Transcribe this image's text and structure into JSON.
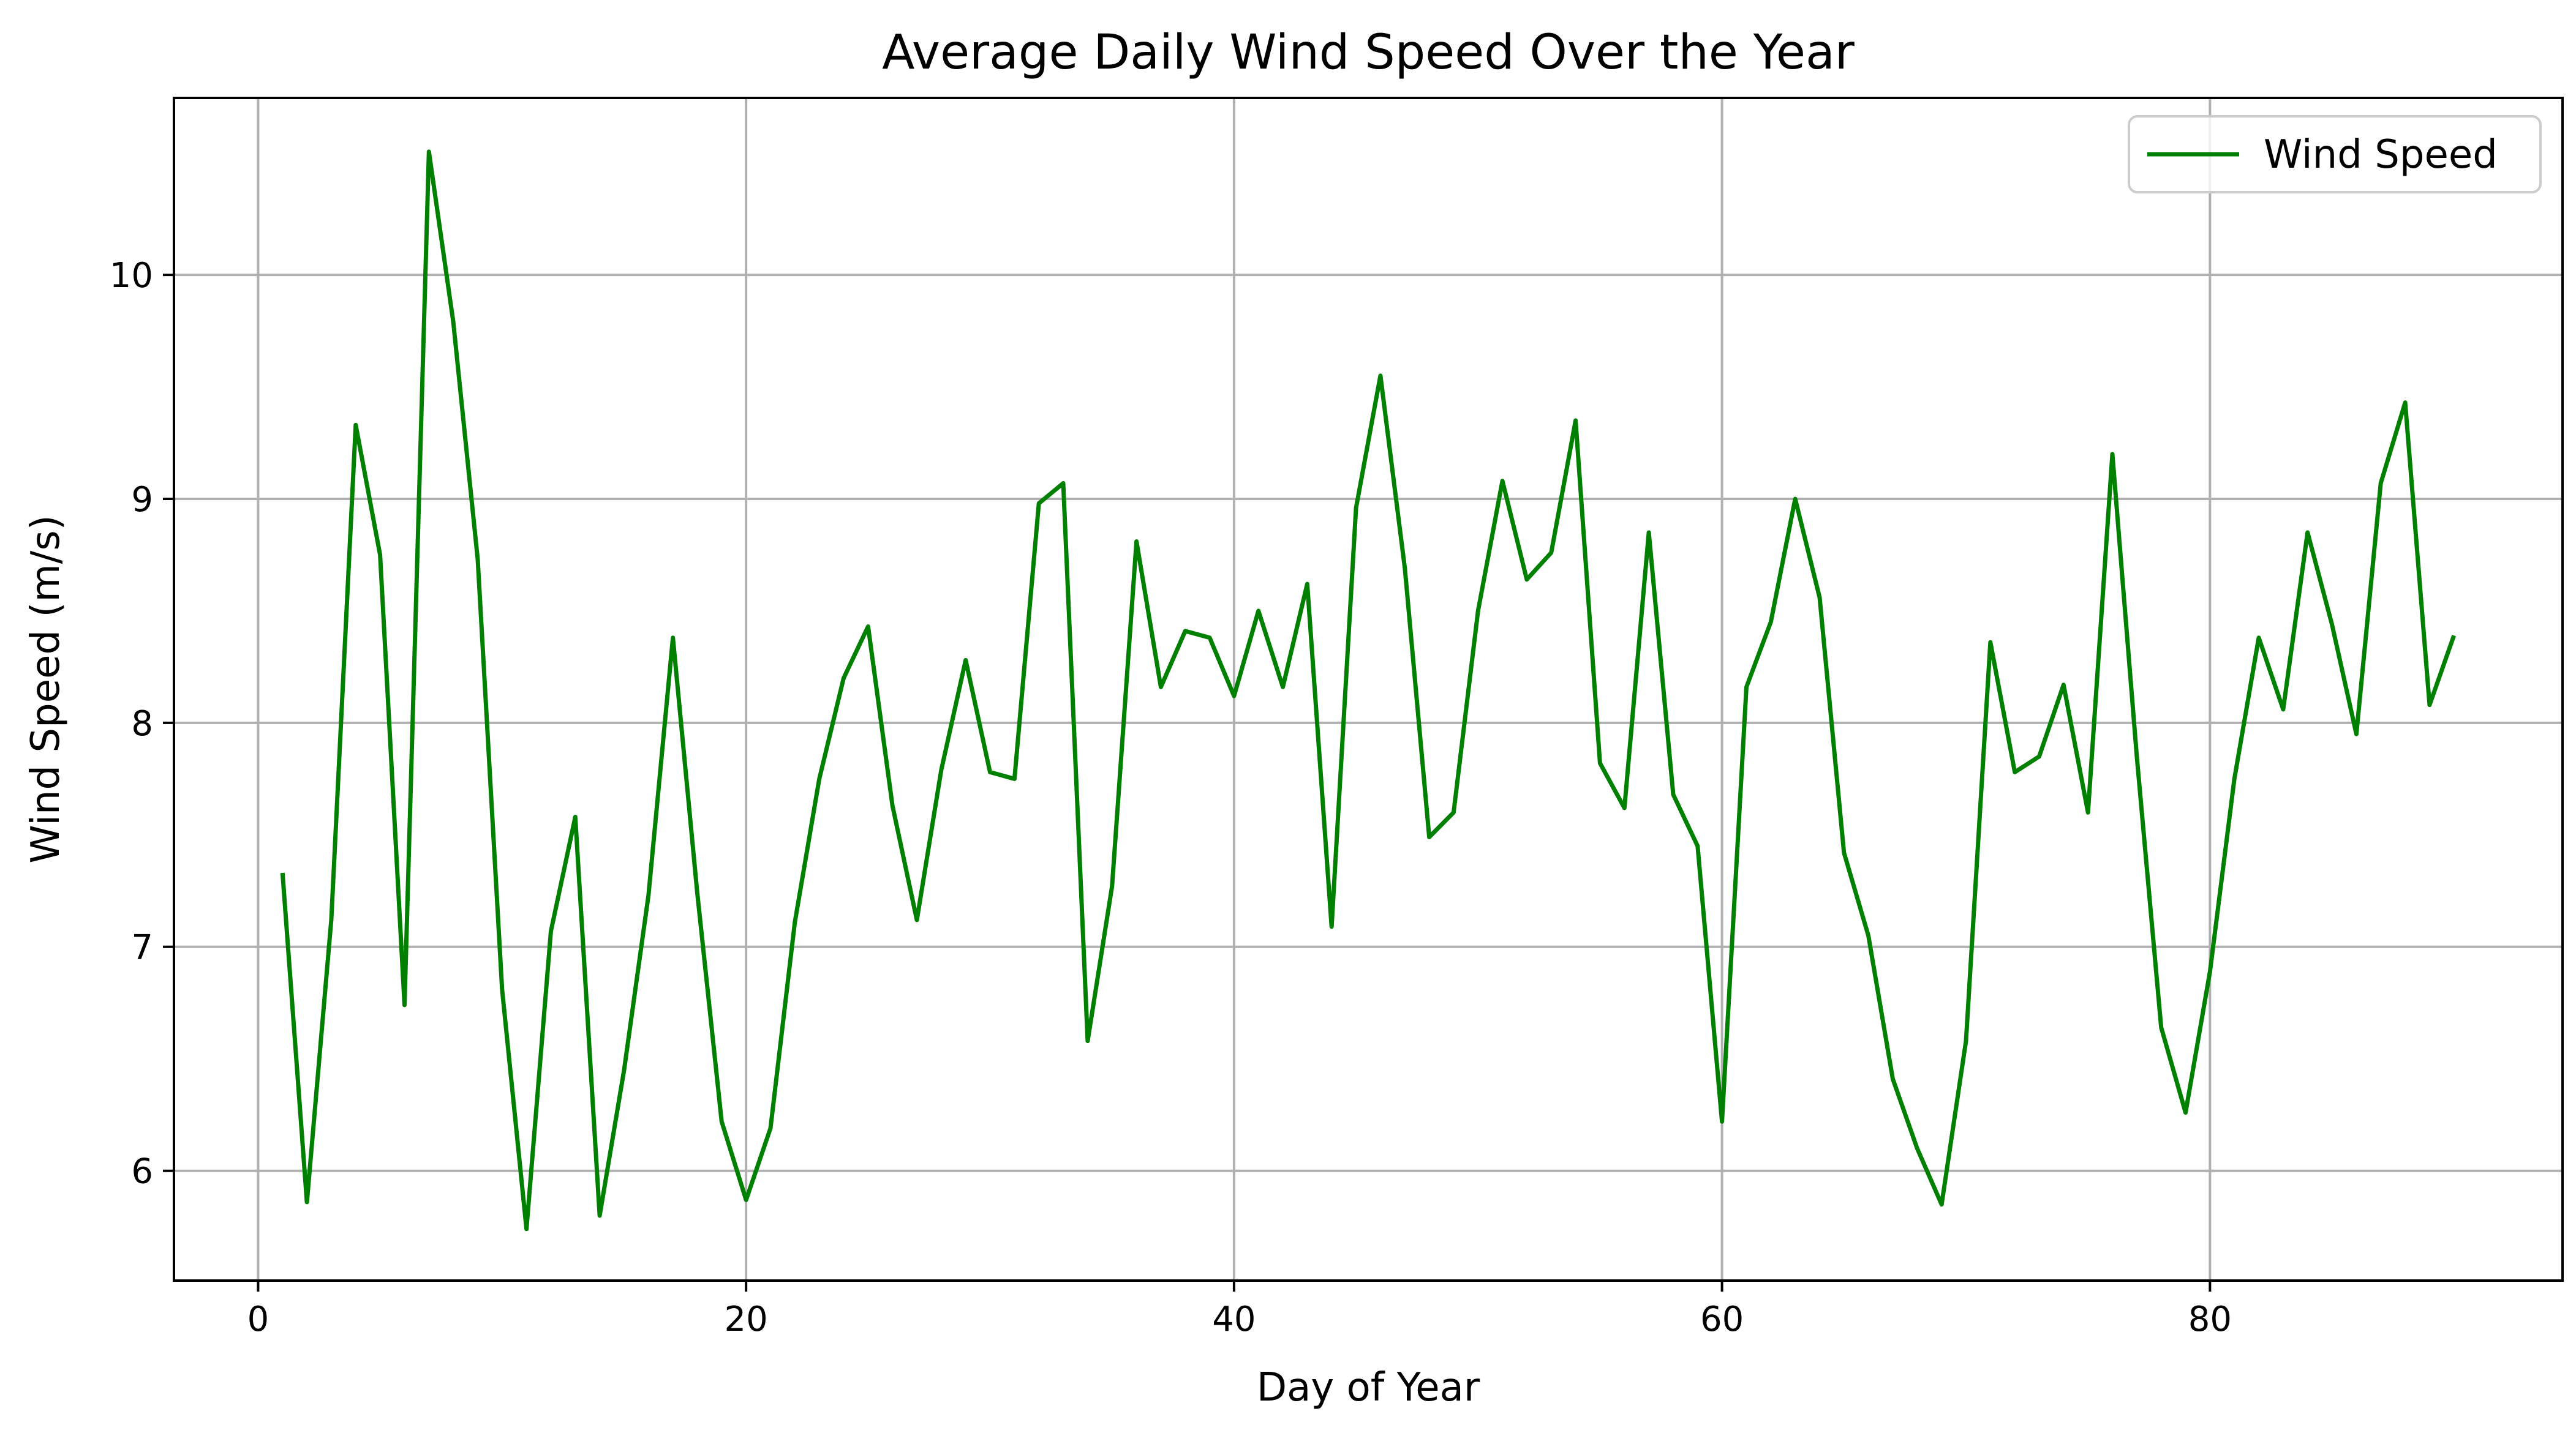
{
  "chart_data": {
    "type": "line",
    "title": "Average Daily Wind Speed Over the Year",
    "xlabel": "Day of Year",
    "ylabel": "Wind Speed (m/s)",
    "xlim": [
      -3.45,
      94.45
    ],
    "ylim": [
      5.51,
      10.79
    ],
    "xticks": [
      0,
      20,
      40,
      60,
      80
    ],
    "xtick_labels": [
      "0",
      "20",
      "40",
      "60",
      "80"
    ],
    "yticks": [
      6,
      7,
      8,
      9,
      10
    ],
    "ytick_labels": [
      "6",
      "7",
      "8",
      "9",
      "10"
    ],
    "grid": true,
    "legend_position": "top-right",
    "series": [
      {
        "name": "Wind Speed",
        "color": "#008000",
        "x": [
          1,
          2,
          3,
          4,
          5,
          6,
          7,
          8,
          9,
          10,
          11,
          12,
          13,
          14,
          15,
          16,
          17,
          18,
          19,
          20,
          21,
          22,
          23,
          24,
          25,
          26,
          27,
          28,
          29,
          30,
          31,
          32,
          33,
          34,
          35,
          36,
          37,
          38,
          39,
          40,
          41,
          42,
          43,
          44,
          45,
          46,
          47,
          48,
          49,
          50,
          51,
          52,
          53,
          54,
          55,
          56,
          57,
          58,
          59,
          60,
          61,
          62,
          63,
          64,
          65,
          66,
          67,
          68,
          69,
          70,
          71,
          72,
          73,
          74,
          75,
          76,
          77,
          78,
          79,
          80,
          81,
          82,
          83,
          84,
          85,
          86,
          87,
          88,
          89,
          90
        ],
        "y": [
          7.33,
          5.86,
          7.12,
          9.33,
          8.75,
          6.74,
          10.55,
          9.79,
          8.73,
          6.81,
          5.74,
          7.07,
          7.58,
          5.8,
          6.45,
          7.23,
          8.38,
          7.24,
          6.22,
          5.87,
          6.19,
          7.11,
          7.75,
          8.2,
          8.43,
          7.63,
          7.12,
          7.79,
          8.28,
          7.78,
          7.75,
          8.98,
          9.07,
          6.58,
          7.27,
          8.81,
          8.16,
          8.41,
          8.38,
          8.12,
          8.5,
          8.16,
          8.62,
          7.09,
          8.96,
          9.55,
          8.69,
          7.49,
          7.6,
          8.5,
          9.08,
          8.64,
          8.76,
          9.35,
          7.82,
          7.62,
          8.85,
          7.68,
          7.45,
          6.22,
          8.16,
          8.45,
          9.0,
          8.56,
          7.42,
          7.05,
          6.41,
          6.1,
          5.85,
          6.58,
          8.36,
          7.78,
          7.85,
          8.17,
          7.6,
          9.2,
          7.85,
          6.64,
          6.26,
          6.89,
          7.75,
          8.38,
          8.06,
          8.85,
          8.44,
          7.95,
          9.07,
          9.43,
          8.08,
          8.39
        ]
      }
    ]
  }
}
